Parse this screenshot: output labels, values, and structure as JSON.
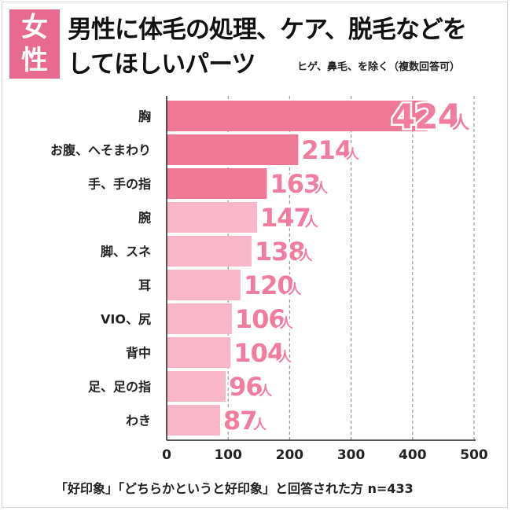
{
  "badge": {
    "line1": "女",
    "line2": "性"
  },
  "header": {
    "title_line1": "男性に体毛の処理、ケア、脱毛などを",
    "title_line2": "してほしいパーツ",
    "note": "ヒゲ、鼻毛、を除く（複数回答可）"
  },
  "footnote": "「好印象」「どちらかというと好印象」と回答された方 n=433",
  "colors": {
    "accent": "#e86a90",
    "bar_dark": "#f07897",
    "bar_light": "#f8b6c9",
    "label": "#f07da0"
  },
  "chart_data": {
    "type": "bar",
    "orientation": "horizontal",
    "categories": [
      "胸",
      "お腹、へそまわり",
      "手、手の指",
      "腕",
      "脚、スネ",
      "耳",
      "VIO、尻",
      "背中",
      "足、足の指",
      "わき"
    ],
    "values": [
      424,
      214,
      163,
      147,
      138,
      120,
      106,
      104,
      96,
      87
    ],
    "value_unit": "人",
    "highlighted_top": 3,
    "xlim": [
      0,
      500
    ],
    "xticks": [
      0,
      100,
      200,
      300,
      400,
      500
    ],
    "grid": true
  }
}
